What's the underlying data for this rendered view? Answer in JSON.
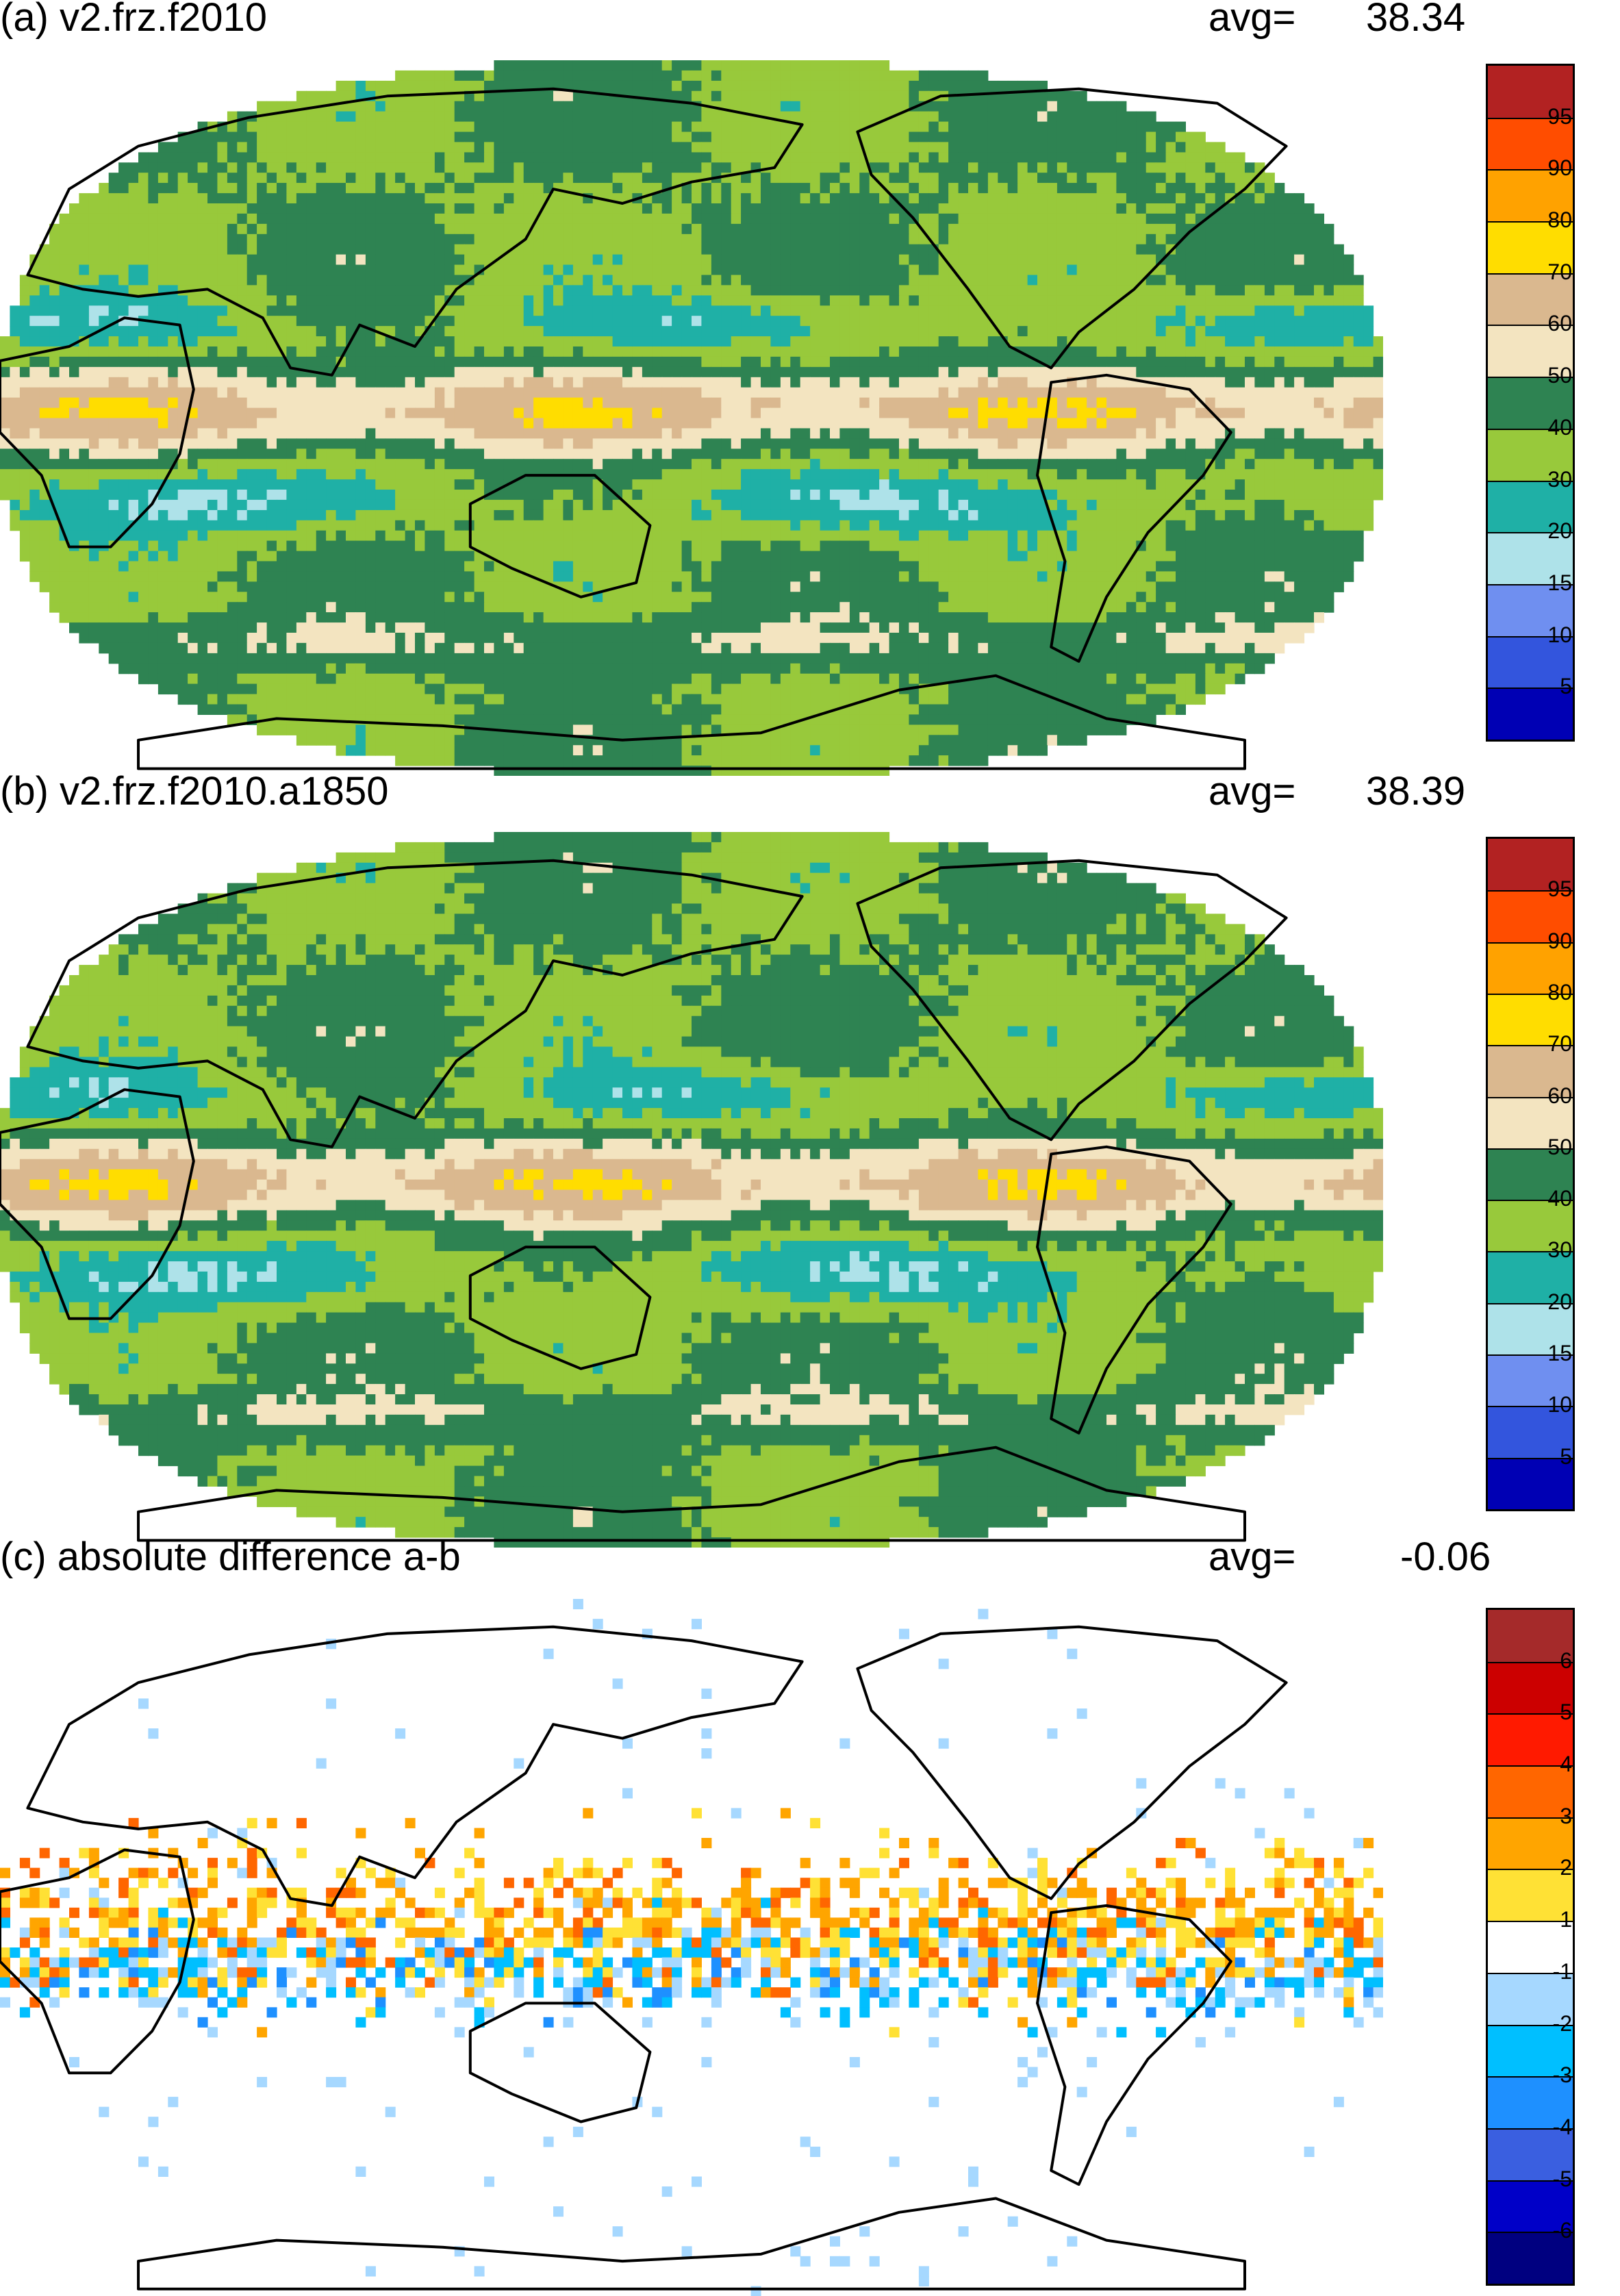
{
  "panels": [
    {
      "id": "a",
      "title": "(a) v2.frz.f2010",
      "avg_label": "avg=",
      "avg_value": "38.34",
      "kind": "field",
      "colorbar": {
        "colors": [
          "#0000b4",
          "#3355dd",
          "#6f8ff0",
          "#aee2e9",
          "#1fb0a6",
          "#98c93b",
          "#2e8352",
          "#f3e4c0",
          "#dab88f",
          "#ffdd00",
          "#ffa200",
          "#ff4d00",
          "#b22222"
        ],
        "labels": [
          "5",
          "10",
          "15",
          "20",
          "30",
          "40",
          "50",
          "60",
          "70",
          "80",
          "90",
          "95"
        ]
      }
    },
    {
      "id": "b",
      "title": "(b) v2.frz.f2010.a1850",
      "avg_label": "avg=",
      "avg_value": "38.39",
      "kind": "field",
      "colorbar": {
        "colors": [
          "#0000b4",
          "#3355dd",
          "#6f8ff0",
          "#aee2e9",
          "#1fb0a6",
          "#98c93b",
          "#2e8352",
          "#f3e4c0",
          "#dab88f",
          "#ffdd00",
          "#ffa200",
          "#ff4d00",
          "#b22222"
        ],
        "labels": [
          "5",
          "10",
          "15",
          "20",
          "30",
          "40",
          "50",
          "60",
          "70",
          "80",
          "90",
          "95"
        ]
      }
    },
    {
      "id": "c",
      "title": "(c) absolute difference a-b",
      "avg_label": "avg=",
      "avg_value": "-0.06",
      "kind": "difference",
      "colorbar": {
        "colors": [
          "#000080",
          "#0000c8",
          "#3a5fe0",
          "#1e90ff",
          "#00bfff",
          "#a6d8ff",
          "#ffffff",
          "#ffe135",
          "#ffa500",
          "#ff6600",
          "#ff1a00",
          "#cc0000",
          "#a52a2a"
        ],
        "labels": [
          "-6",
          "-5",
          "-4",
          "-3",
          "-2",
          "-1",
          "1",
          "2",
          "3",
          "4",
          "5",
          "6"
        ]
      }
    }
  ]
}
